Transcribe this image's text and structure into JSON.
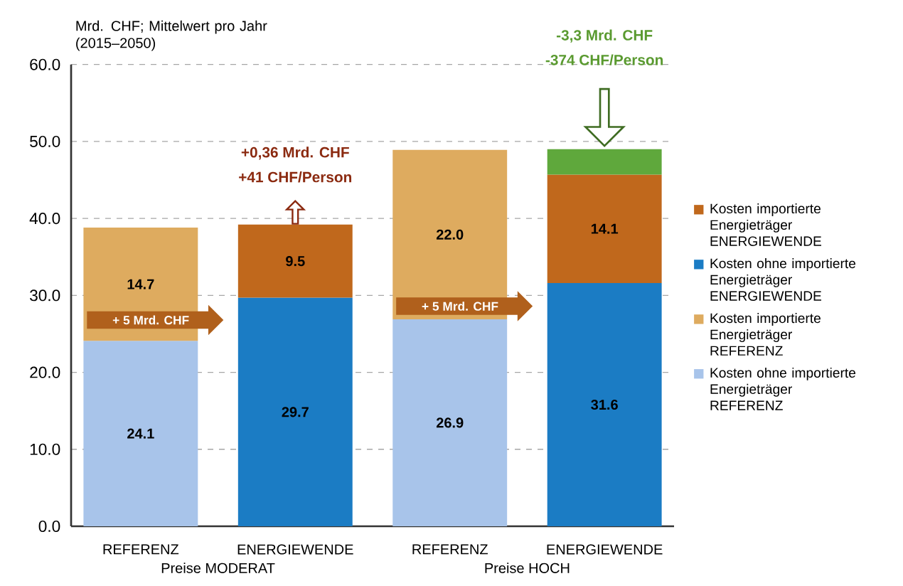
{
  "chart_data": {
    "type": "bar",
    "stacked": true,
    "ylabel": "Mrd. CHF; Mittelwert pro Jahr (2015–2050)",
    "categories": [
      "REFERENZ",
      "ENERGIEWENDE",
      "REFERENZ",
      "ENERGIEWENDE"
    ],
    "series": [
      {
        "name": "Kosten ohne importierte Energieträger REFERENZ",
        "color": "#a8c4ea",
        "values": [
          24.1,
          null,
          26.9,
          null
        ],
        "value_labels": [
          "24.1",
          null,
          "26.9",
          null
        ]
      },
      {
        "name": "Kosten importierte Energieträger REFERENZ",
        "color": "#deab5f",
        "values": [
          14.7,
          null,
          22.0,
          null
        ],
        "value_labels": [
          "14.7",
          null,
          "22.0",
          null
        ]
      },
      {
        "name": "Kosten ohne importierte Energieträger ENERGIEWENDE",
        "color": "#1b7cc4",
        "values": [
          null,
          29.7,
          null,
          31.6
        ],
        "value_labels": [
          null,
          "29.7",
          null,
          "31.6"
        ]
      },
      {
        "name": "Kosten importierte Energieträger ENERGIEWENDE",
        "color": "#c0681c",
        "values": [
          null,
          9.5,
          null,
          14.1
        ],
        "value_labels": [
          null,
          "9.5",
          null,
          "14.1"
        ]
      },
      {
        "color": "#5fa83c",
        "values": [
          null,
          null,
          null,
          3.3
        ]
      }
    ],
    "ylim": [
      0,
      60
    ],
    "yticks": [
      {
        "value": 0,
        "label": "0.0"
      },
      {
        "value": 10,
        "label": "10.0"
      },
      {
        "value": 20,
        "label": "20.0"
      },
      {
        "value": 30,
        "label": "30.0"
      },
      {
        "value": 40,
        "label": "40.0"
      },
      {
        "value": 50,
        "label": "50.0"
      },
      {
        "value": 60,
        "label": "60.0"
      }
    ],
    "grid": "y",
    "legend": "right",
    "annotations": [
      "+0,36 Mrd. CHF",
      "+41 CHF/Person",
      "-3,3 Mrd. CHF",
      "-374 CHF/Person",
      "+ 5 Mrd. CHF",
      "+ 5 Mrd. CHF",
      "Preise MODERAT",
      "Preise HOCH"
    ]
  }
}
